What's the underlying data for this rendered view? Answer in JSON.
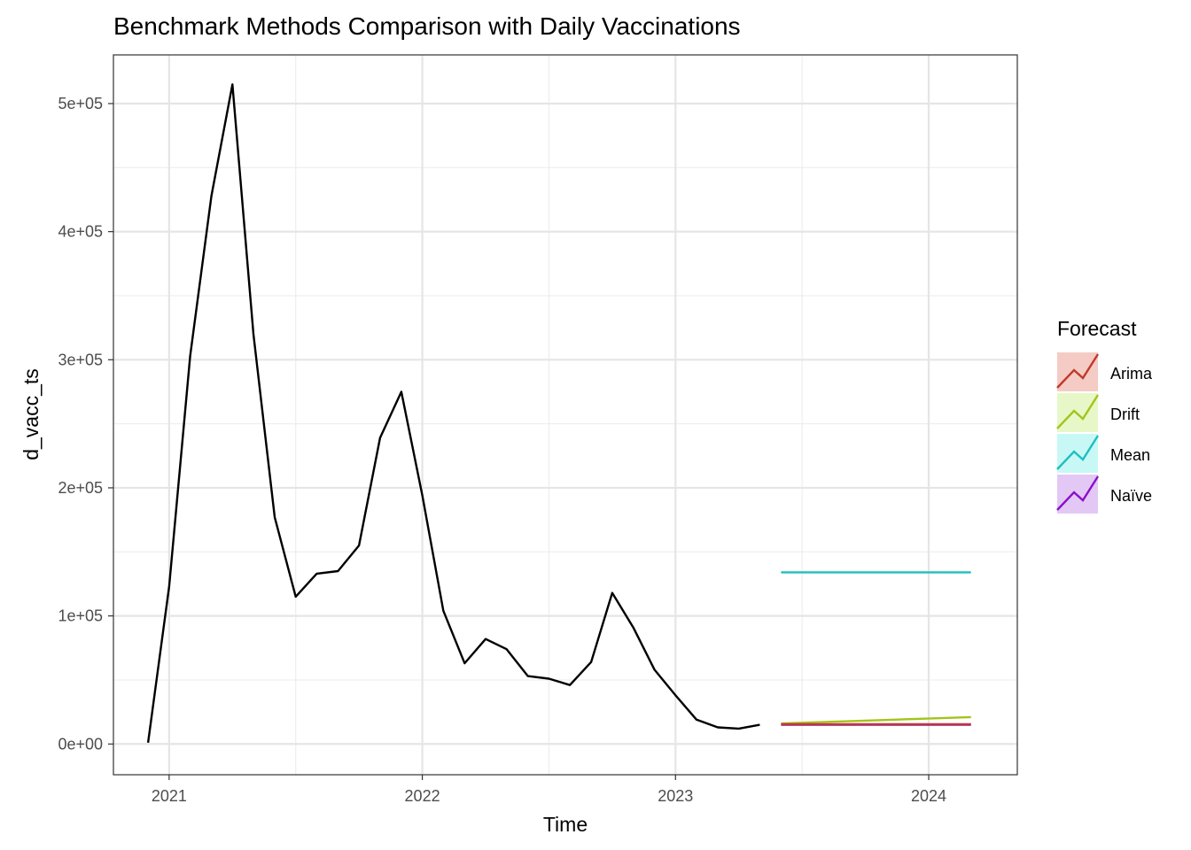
{
  "chart_data": {
    "type": "line",
    "title": "Benchmark Methods Comparison with Daily Vaccinations",
    "xlabel": "Time",
    "ylabel": "d_vacc_ts",
    "xlim": [
      2020.78,
      2024.35
    ],
    "ylim": [
      -24000,
      538000
    ],
    "x_ticks": [
      2021,
      2022,
      2023,
      2024
    ],
    "x_tick_labels": [
      "2021",
      "2022",
      "2023",
      "2024"
    ],
    "y_ticks": [
      0,
      100000,
      200000,
      300000,
      400000,
      500000
    ],
    "y_tick_labels": [
      "0e+00",
      "1e+05",
      "2e+05",
      "3e+05",
      "4e+05",
      "5e+05"
    ],
    "grid": true,
    "observed": {
      "color": "#000000",
      "x": [
        2020.917,
        2021.0,
        2021.083,
        2021.167,
        2021.25,
        2021.333,
        2021.417,
        2021.5,
        2021.583,
        2021.667,
        2021.75,
        2021.833,
        2021.917,
        2022.0,
        2022.083,
        2022.167,
        2022.25,
        2022.333,
        2022.417,
        2022.5,
        2022.583,
        2022.667,
        2022.75,
        2022.833,
        2022.917,
        2023.0,
        2023.083,
        2023.167,
        2023.25,
        2023.333
      ],
      "values": [
        1000,
        123000,
        303000,
        428000,
        515000,
        320000,
        177000,
        115000,
        133000,
        135000,
        155000,
        239000,
        275000,
        194000,
        104000,
        63000,
        82000,
        74000,
        53000,
        51000,
        46000,
        64000,
        118000,
        91000,
        58000,
        38000,
        19000,
        13000,
        12000,
        15000
      ]
    },
    "legend": {
      "title": "Forecast",
      "position": "right",
      "entries": [
        {
          "label": "Arima",
          "color": "#c0392b",
          "fill": "#f5cbc5"
        },
        {
          "label": "Drift",
          "color": "#a3c41a",
          "fill": "#e8f7c7"
        },
        {
          "label": "Mean",
          "color": "#1ebfbf",
          "fill": "#c8f8f6"
        },
        {
          "label": "Naïve",
          "color": "#8b0fc9",
          "fill": "#e3c8f6"
        }
      ]
    },
    "series": [
      {
        "name": "Mean",
        "color": "#1ebfbf",
        "x": [
          2023.417,
          2024.167
        ],
        "values": [
          134000,
          134000
        ]
      },
      {
        "name": "Drift",
        "color": "#a3c41a",
        "x": [
          2023.417,
          2024.167
        ],
        "values": [
          16000,
          21000
        ]
      },
      {
        "name": "Naïve",
        "color": "#8b0fc9",
        "x": [
          2023.417,
          2024.167
        ],
        "values": [
          15000,
          15000
        ]
      },
      {
        "name": "Arima",
        "color": "#c0392b",
        "x": [
          2023.417,
          2024.167
        ],
        "values": [
          15500,
          15500
        ]
      }
    ]
  }
}
